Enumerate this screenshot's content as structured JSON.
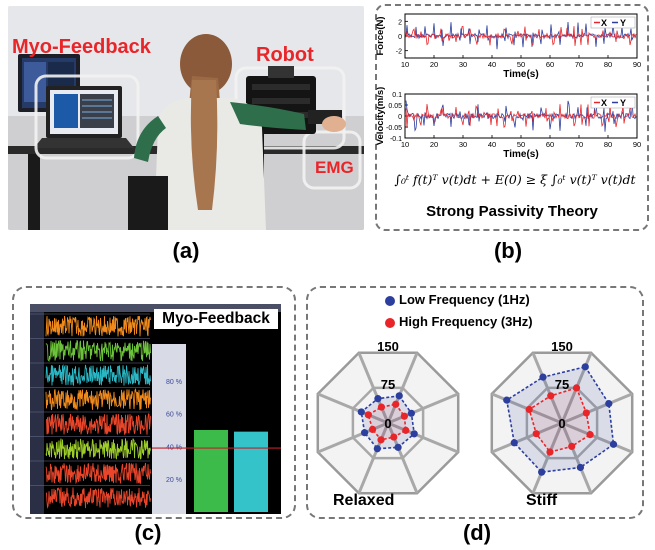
{
  "panel_a": {
    "label": "(a)",
    "myo_label": "Myo-Feedback",
    "robot_label": "Robot",
    "emg_label": "EMG"
  },
  "panel_b": {
    "label": "(b)",
    "force_ylabel": "Force(N)",
    "velocity_ylabel": "Velocity(m/s)",
    "xlabel": "Time(s)",
    "legend_x": "X",
    "legend_y": "Y",
    "force_yticks": [
      "2",
      "0",
      "-2"
    ],
    "velocity_yticks": [
      "0.1",
      "0.05",
      "0",
      "-0.05",
      "-0.1"
    ],
    "xticks": [
      "10",
      "20",
      "30",
      "40",
      "50",
      "60",
      "70",
      "80",
      "90"
    ],
    "equation": "∫₀ᵗ f(t)ᵀ v(t)dt + E(0) ≥ ξ ∫₀ᵗ v(t)ᵀ v(t)dt",
    "theory": "Strong Passivity Theory",
    "colors": {
      "x": "#e8262a",
      "y": "#2c3e9e"
    }
  },
  "panel_c": {
    "label": "(c)",
    "title": "Myo-Feedback",
    "yticks": [
      "80 %",
      "60 %",
      "40 %",
      "20 %"
    ],
    "bar_levels_percent": [
      50,
      49
    ],
    "threshold_percent": 39,
    "channel_colors": [
      "#f08a1c",
      "#6cc23a",
      "#2bb6c4",
      "#f08a1c",
      "#e8452a",
      "#9ccc2a",
      "#e8452a",
      "#e8452a"
    ]
  },
  "panel_d": {
    "label": "(d)",
    "legend_low": "Low Frequency (1Hz)",
    "legend_high": "High Frequency (3Hz)",
    "ticks": [
      "150",
      "75",
      "0"
    ],
    "relaxed_label": "Relaxed",
    "stiff_label": "Stiff",
    "colors": {
      "low": "#2c3e9e",
      "high": "#e8262a"
    }
  },
  "chart_data": [
    {
      "type": "line",
      "title": "",
      "xlabel": "Time(s)",
      "ylabel": "Force(N)",
      "xlim": [
        10,
        90
      ],
      "ylim": [
        -3,
        3
      ],
      "series": [
        {
          "name": "X"
        },
        {
          "name": "Y"
        }
      ]
    },
    {
      "type": "line",
      "title": "",
      "xlabel": "Time(s)",
      "ylabel": "Velocity(m/s)",
      "xlim": [
        10,
        90
      ],
      "ylim": [
        -0.1,
        0.1
      ],
      "series": [
        {
          "name": "X"
        },
        {
          "name": "Y"
        }
      ]
    },
    {
      "type": "bar",
      "title": "Myo-Feedback",
      "ylim": [
        0,
        100
      ],
      "values": [
        50,
        49
      ]
    },
    {
      "type": "radar",
      "title": "Relaxed",
      "rlim": [
        0,
        150
      ],
      "series": [
        {
          "name": "Low Frequency (1Hz)",
          "values": [
            58,
            50,
            56,
            52,
            55,
            50,
            57,
            52
          ]
        },
        {
          "name": "High Frequency (3Hz)",
          "values": [
            40,
            35,
            38,
            30,
            36,
            33,
            42,
            34
          ]
        }
      ]
    },
    {
      "type": "radar",
      "title": "Stiff",
      "rlim": [
        0,
        150
      ],
      "series": [
        {
          "name": "Low Frequency (1Hz)",
          "values": [
            120,
            100,
            110,
            95,
            105,
            102,
            118,
            98
          ]
        },
        {
          "name": "High Frequency (3Hz)",
          "values": [
            75,
            52,
            60,
            50,
            62,
            55,
            70,
            58
          ]
        }
      ]
    }
  ]
}
